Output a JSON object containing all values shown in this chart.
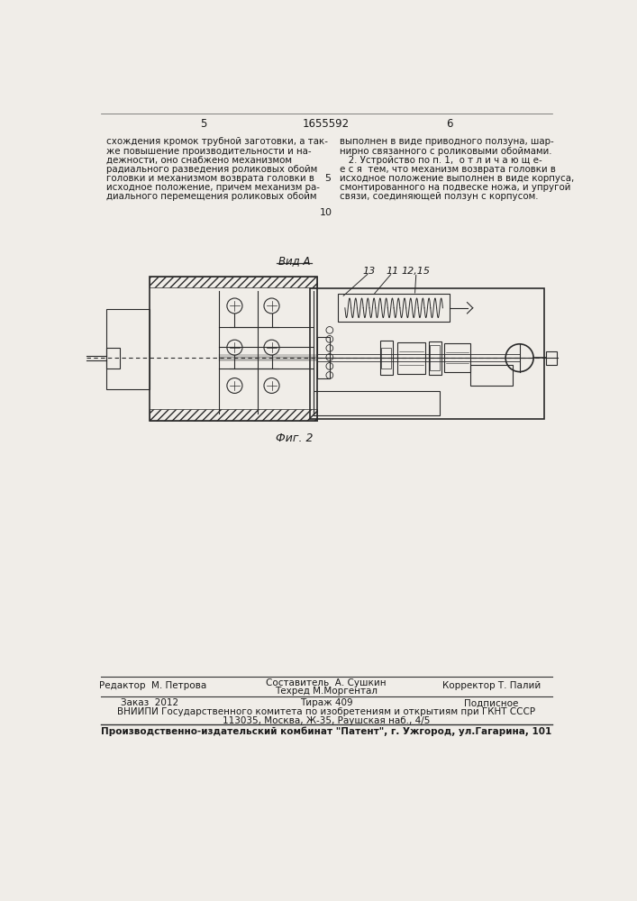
{
  "bg_color": "#f0ede8",
  "page_num_left": "5",
  "page_num_center": "1655592",
  "page_num_right": "6",
  "col_left_text": [
    "схождения кромок трубной заготовки, а так-",
    "же повышение производительности и на-",
    "дежности, оно снабжено механизмом",
    "радиального разведения роликовых обойм",
    "головки и механизмом возврата головки в",
    "исходное положение, причем механизм ра-",
    "диального перемещения роликовых обойм"
  ],
  "col_right_text": [
    "выполнен в виде приводного ползуна, шар-",
    "нирно связанного с роликовыми обоймами.",
    "   2. Устройство по п. 1,  о т л и ч а ю щ е-",
    "е с я  тем, что механизм возврата головки в",
    "исходное положение выполнен в виде корпуса,",
    "смонтированного на подвеске ножа, и упругой",
    "связи, соединяющей ползун с корпусом."
  ],
  "line_num_5": "5",
  "line_num_10": "10",
  "view_label": "Вид А",
  "part_labels": [
    "13",
    "11",
    "12,15"
  ],
  "fig_label": "Фиг. 2",
  "editor_left": "Редактор  М. Петрова",
  "composer_line_1": "Составитель  А. Сушкин",
  "composer_line_2": "Техред М.Моргентал",
  "corrector_line": "Корректор Т. Палий",
  "order_line": "Заказ  2012",
  "tirage_line": "Тираж 409",
  "podpisnoe_line": "Подписное",
  "vniiipi_line_1": "ВНИИПИ Государственного комитета по изобретениям и открытиям при ГКНТ СССР",
  "vniiipi_line_2": "113035, Москва, Ж-35, Раушская наб., 4/5",
  "factory_line": "Производственно-издательский комбинат \"Патент\", г. Ужгород, ул.Гагарина, 101"
}
